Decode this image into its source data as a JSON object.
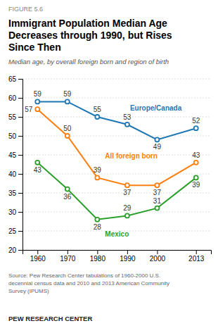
{
  "chart_data": {
    "type": "line",
    "title": "Immigrant Population Median Age\nDecreases through 1990, but Rises\nSince Then",
    "subtitle": "Median age, by overall foreign born and region of birth",
    "annotations": [
      "FIGURE 5.6",
      "Source: Pew Research Center tabulations of 1960-2000 U.S.\ndecennial census data and 2010 and 2013 American Community\nSurvey (IPUMS)",
      "PEW RESEARCH CENTER"
    ],
    "x": [
      1960,
      1970,
      1980,
      1990,
      2000,
      2013
    ],
    "series": [
      {
        "name": "Europe/Canada",
        "values": [
          59,
          59,
          55,
          53,
          49,
          52
        ]
      },
      {
        "name": "All foreign born",
        "values": [
          57,
          50,
          39,
          37,
          37,
          43
        ]
      },
      {
        "name": "Mexico",
        "values": [
          43,
          36,
          28,
          29,
          31,
          39
        ]
      }
    ],
    "xlim": [
      1955,
      2018
    ],
    "xticks": [
      1960,
      1970,
      1980,
      1990,
      2000,
      2013
    ],
    "ylim": [
      20,
      65
    ],
    "yticks": [
      20,
      25,
      30,
      35,
      40,
      45,
      50,
      55,
      60,
      65
    ],
    "grid": true,
    "marker": "circle",
    "data_labels": true
  }
}
